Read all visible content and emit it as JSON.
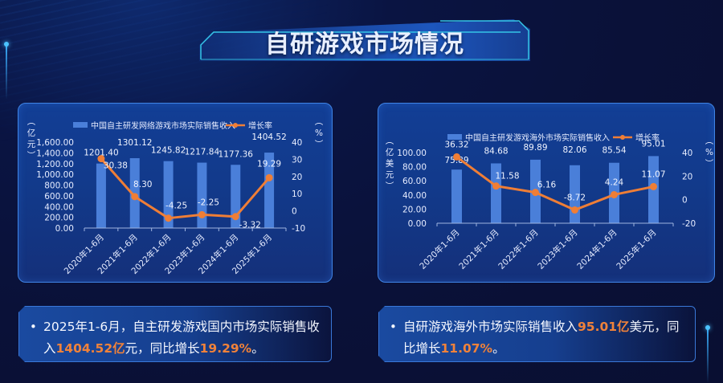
{
  "page": {
    "title": "自研游戏市场情况"
  },
  "colors": {
    "bar": "#4a7fd9",
    "line": "#ef7e36",
    "highlight": "#f0823a",
    "panel_border": "#3f84e6"
  },
  "left_panel": {
    "legend_bar": "中国自主研发网络游戏市场实际销售收入",
    "legend_line": "增长率",
    "left_unit": "（亿元）",
    "right_unit": "（%）"
  },
  "right_panel": {
    "legend_bar": "中国自主研发游戏海外市场实际销售收入",
    "legend_line": "增长率",
    "left_unit": "（亿美元）",
    "right_unit": "（%）"
  },
  "chart_data": [
    {
      "type": "bar",
      "title": "",
      "categories": [
        "2020年1-6月",
        "2021年1-6月",
        "2022年1-6月",
        "2023年1-6月",
        "2024年1-6月",
        "2025年1-6月"
      ],
      "series": [
        {
          "name": "中国自主研发网络游戏市场实际销售收入",
          "type": "bar",
          "axis": "left",
          "values": [
            1201.4,
            1301.12,
            1245.82,
            1217.84,
            1177.36,
            1404.52
          ],
          "labels": [
            "1201.40",
            "1301.12",
            "1245.82",
            "1217.84",
            "1177.36",
            "1404.52"
          ]
        },
        {
          "name": "增长率",
          "type": "line",
          "axis": "right",
          "values": [
            30.38,
            8.3,
            -4.25,
            -2.25,
            -3.32,
            19.29
          ],
          "labels": [
            "30.38",
            "8.30",
            "-4.25",
            "-2.25",
            "-3.32",
            "19.29"
          ]
        }
      ],
      "ylabel": "亿元",
      "y2label": "%",
      "ylim": [
        0,
        1600
      ],
      "y2lim": [
        -10,
        40
      ],
      "yticks": [
        "1,600.00",
        "1,400.00",
        "1,200.00",
        "1,000.00",
        "800.00",
        "600.00",
        "400.00",
        "200.00",
        "0.00"
      ],
      "y2ticks": [
        "40",
        "30",
        "20",
        "10",
        "0",
        "-10"
      ],
      "legend_position": "top",
      "grid": false
    },
    {
      "type": "bar",
      "title": "",
      "categories": [
        "2020年1-6月",
        "2021年1-6月",
        "2022年1-6月",
        "2023年1-6月",
        "2024年1-6月",
        "2025年1-6月"
      ],
      "series": [
        {
          "name": "中国自主研发游戏海外市场实际销售收入",
          "type": "bar",
          "axis": "left",
          "values": [
            75.89,
            84.68,
            89.89,
            82.06,
            85.54,
            95.01
          ],
          "labels": [
            "75.89",
            "84.68",
            "89.89",
            "82.06",
            "85.54",
            "95.01"
          ]
        },
        {
          "name": "增长率",
          "type": "line",
          "axis": "right",
          "values": [
            36.32,
            11.58,
            6.16,
            -8.72,
            4.24,
            11.07
          ],
          "labels": [
            "36.32",
            "11.58",
            "6.16",
            "-8.72",
            "4.24",
            "11.07"
          ]
        }
      ],
      "ylabel": "亿美元",
      "y2label": "%",
      "ylim": [
        0,
        100
      ],
      "y2lim": [
        -20,
        40
      ],
      "yticks": [
        "100.00",
        "80.00",
        "60.00",
        "40.00",
        "20.00",
        "0.00"
      ],
      "y2ticks": [
        "40",
        "20",
        "0",
        "-20"
      ],
      "legend_position": "top",
      "grid": false
    }
  ],
  "notes": {
    "left": {
      "bullet": "•",
      "p1": "2025年1-6月，自主研发游戏国内市场实际销售收入",
      "v1": "1404.52亿",
      "p2": "元，同比增长",
      "v2": "19.29%",
      "p3": "。"
    },
    "right": {
      "bullet": "•",
      "p1": "自研游戏海外市场实际销售收入",
      "v1": "95.01亿",
      "p2": "美元，同比增长",
      "v2": "11.07%",
      "p3": "。"
    }
  }
}
